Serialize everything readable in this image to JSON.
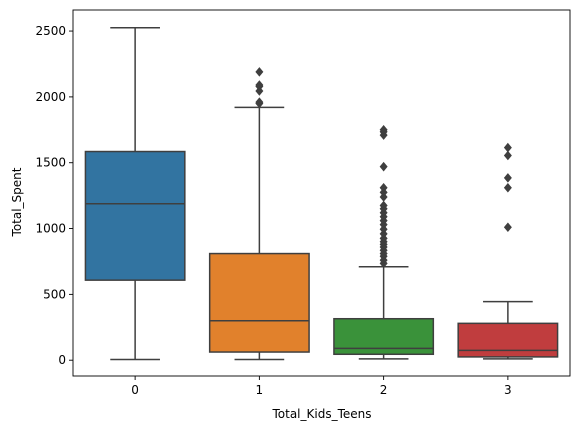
{
  "chart_data": {
    "type": "box",
    "title": "",
    "xlabel": "Total_Kids_Teens",
    "ylabel": "Total_Spent",
    "ylim": [
      -120,
      2660
    ],
    "y_ticks": [
      0,
      500,
      1000,
      1500,
      2000,
      2500
    ],
    "grid": false,
    "legend": "none",
    "categories": [
      "0",
      "1",
      "2",
      "3"
    ],
    "boxes": [
      {
        "category": "0",
        "color": "#3274a1",
        "whisker_low": 5,
        "q1": 608,
        "median": 1188,
        "q3": 1585,
        "whisker_high": 2525,
        "outliers": []
      },
      {
        "category": "1",
        "color": "#e1812c",
        "whisker_low": 5,
        "q1": 62,
        "median": 300,
        "q3": 810,
        "whisker_high": 1920,
        "outliers": [
          1950,
          1960,
          2045,
          2080,
          2090,
          2190
        ]
      },
      {
        "category": "2",
        "color": "#3a923a",
        "whisker_low": 10,
        "q1": 45,
        "median": 90,
        "q3": 315,
        "whisker_high": 710,
        "outliers": [
          735,
          760,
          790,
          810,
          835,
          860,
          880,
          900,
          925,
          960,
          995,
          1030,
          1060,
          1090,
          1120,
          1150,
          1175,
          1240,
          1275,
          1310,
          1470,
          1710,
          1735,
          1750
        ]
      },
      {
        "category": "3",
        "color": "#c03d3e",
        "whisker_low": 10,
        "q1": 25,
        "median": 75,
        "q3": 280,
        "whisker_high": 445,
        "outliers": [
          1010,
          1310,
          1385,
          1555,
          1615
        ]
      }
    ]
  }
}
